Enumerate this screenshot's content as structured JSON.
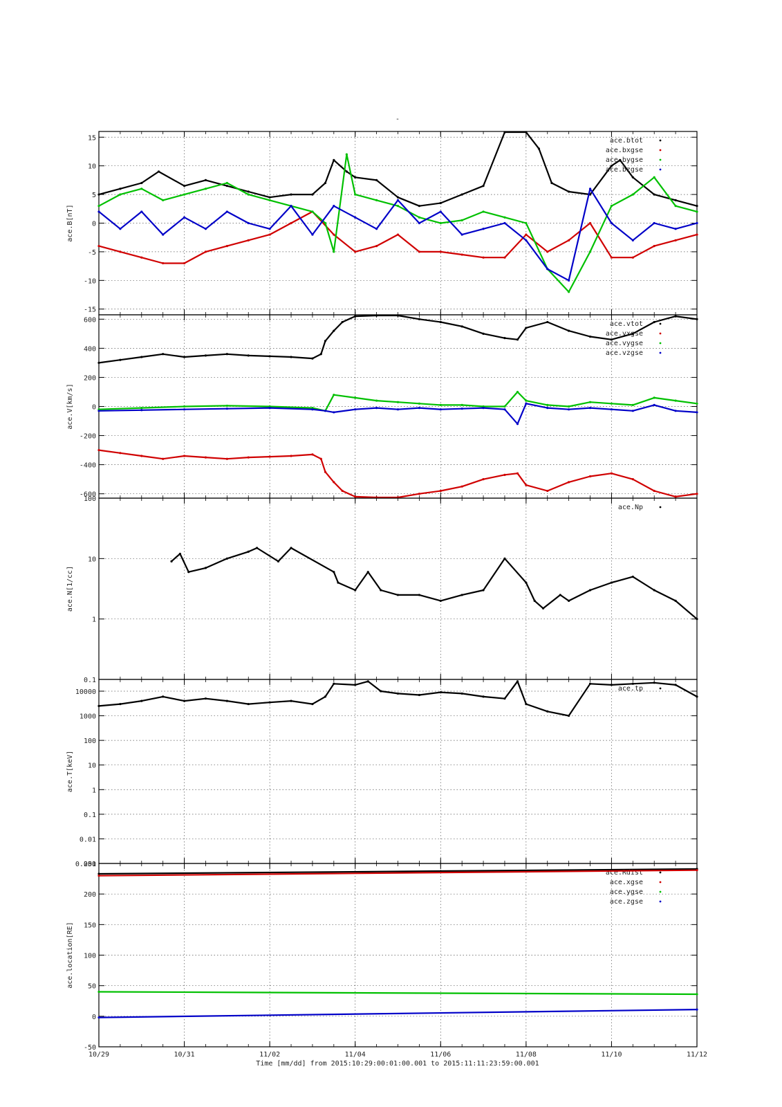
{
  "figure": {
    "title": "-",
    "x_axis_label": "Time [mm/dd]  from 2015:10:29:00:01:00.001  to  2015:11:11:23:59:00.001",
    "x_ticks": [
      "10/29",
      "10/31",
      "11/02",
      "11/04",
      "11/06",
      "11/08",
      "11/10",
      "11/12"
    ],
    "x_range_days": [
      0,
      14
    ]
  },
  "colors": {
    "black": "#000000",
    "red": "#d00000",
    "green": "#00c000",
    "blue": "#0000c8",
    "grid": "#555555"
  },
  "chart_data": [
    {
      "type": "scatter",
      "ylabel": "ace.B[nT]",
      "ylim": [
        -16,
        16
      ],
      "yscale": "linear",
      "y_ticks": [
        "15",
        "10",
        "5",
        "0",
        "-5",
        "-10",
        "-15"
      ],
      "legend_position": "top-right",
      "series": [
        {
          "name": "ace.btot",
          "color": "black",
          "x": [
            0,
            0.5,
            1,
            1.4,
            2,
            2.5,
            3,
            3.5,
            4,
            4.5,
            5,
            5.3,
            5.5,
            5.8,
            6,
            6.5,
            7,
            7.5,
            8,
            8.5,
            9,
            9.5,
            10,
            10.3,
            10.6,
            11,
            11.5,
            12,
            12.2,
            12.5,
            13,
            13.5,
            14
          ],
          "y": [
            5,
            6,
            7,
            9,
            6.5,
            7.5,
            6.5,
            5.5,
            4.5,
            5,
            5,
            7,
            11,
            9,
            8,
            7.5,
            4.5,
            3,
            3.5,
            5,
            6.5,
            17,
            16,
            13,
            7,
            5.5,
            5,
            10,
            11,
            8,
            5,
            4,
            3
          ]
        },
        {
          "name": "ace.bxgse",
          "color": "red",
          "x": [
            0,
            0.5,
            1,
            1.5,
            2,
            2.5,
            3,
            3.5,
            4,
            4.5,
            5,
            5.5,
            6,
            6.5,
            7,
            7.5,
            8,
            8.5,
            9,
            9.5,
            10,
            10.5,
            11,
            11.5,
            12,
            12.5,
            13,
            13.5,
            14
          ],
          "y": [
            -4,
            -5,
            -6,
            -7,
            -7,
            -5,
            -4,
            -3,
            -2,
            0,
            2,
            -2,
            -5,
            -4,
            -2,
            -5,
            -5,
            -5.5,
            -6,
            -6,
            -2,
            -5,
            -3,
            0,
            -6,
            -6,
            -4,
            -3,
            -2
          ]
        },
        {
          "name": "ace.bygse",
          "color": "green",
          "x": [
            0,
            0.5,
            1,
            1.5,
            2,
            2.5,
            3,
            3.5,
            4,
            4.5,
            5,
            5.3,
            5.5,
            5.8,
            6,
            6.5,
            7,
            7.5,
            8,
            8.5,
            9,
            9.5,
            10,
            10.5,
            11,
            11.5,
            12,
            12.5,
            13,
            13.5,
            14
          ],
          "y": [
            3,
            5,
            6,
            4,
            5,
            6,
            7,
            5,
            4,
            3,
            2,
            0,
            -5,
            12,
            5,
            4,
            3,
            1,
            0,
            0.5,
            2,
            1,
            0,
            -8,
            -12,
            -5,
            3,
            5,
            8,
            3,
            2
          ]
        },
        {
          "name": "ace.bzgse",
          "color": "blue",
          "x": [
            0,
            0.5,
            1,
            1.5,
            2,
            2.5,
            3,
            3.5,
            4,
            4.5,
            5,
            5.5,
            6,
            6.5,
            7,
            7.5,
            8,
            8.5,
            9,
            9.5,
            10,
            10.5,
            11,
            11.5,
            12,
            12.5,
            13,
            13.5,
            14
          ],
          "y": [
            2,
            -1,
            2,
            -2,
            1,
            -1,
            2,
            0,
            -1,
            3,
            -2,
            3,
            1,
            -1,
            4,
            0,
            2,
            -2,
            -1,
            0,
            -3,
            -8,
            -10,
            6,
            0,
            -3,
            0,
            -1,
            0
          ]
        }
      ]
    },
    {
      "type": "scatter",
      "ylabel": "ace.V[km/s]",
      "ylim": [
        -630,
        630
      ],
      "yscale": "linear",
      "y_ticks": [
        "600",
        "400",
        "200",
        "0",
        "-200",
        "-400",
        "-600"
      ],
      "legend_position": "top-right",
      "series": [
        {
          "name": "ace.vtot",
          "color": "black",
          "x": [
            0,
            0.5,
            1,
            1.5,
            2,
            2.5,
            3,
            3.5,
            4,
            4.5,
            5,
            5.2,
            5.3,
            5.5,
            5.7,
            6,
            6.5,
            7,
            7.5,
            8,
            8.5,
            9,
            9.5,
            9.8,
            10,
            10.5,
            11,
            11.5,
            12,
            12.5,
            13,
            13.5,
            14
          ],
          "y": [
            300,
            320,
            340,
            360,
            340,
            350,
            360,
            350,
            345,
            340,
            330,
            360,
            450,
            520,
            580,
            620,
            640,
            630,
            600,
            580,
            550,
            500,
            470,
            460,
            540,
            580,
            520,
            480,
            460,
            500,
            580,
            620,
            600
          ]
        },
        {
          "name": "ace.vxgse",
          "color": "red",
          "x": [
            0,
            0.5,
            1,
            1.5,
            2,
            2.5,
            3,
            3.5,
            4,
            4.5,
            5,
            5.2,
            5.3,
            5.5,
            5.7,
            6,
            6.5,
            7,
            7.5,
            8,
            8.5,
            9,
            9.5,
            9.8,
            10,
            10.5,
            11,
            11.5,
            12,
            12.5,
            13,
            13.5,
            14
          ],
          "y": [
            -300,
            -320,
            -340,
            -360,
            -340,
            -350,
            -360,
            -350,
            -345,
            -340,
            -330,
            -360,
            -450,
            -520,
            -580,
            -620,
            -640,
            -630,
            -600,
            -580,
            -550,
            -500,
            -470,
            -460,
            -540,
            -580,
            -520,
            -480,
            -460,
            -500,
            -580,
            -620,
            -600
          ]
        },
        {
          "name": "ace.vygse",
          "color": "green",
          "x": [
            0,
            1,
            2,
            3,
            4,
            5,
            5.3,
            5.5,
            6,
            6.5,
            7,
            7.5,
            8,
            8.5,
            9,
            9.5,
            9.8,
            10,
            10.5,
            11,
            11.5,
            12,
            12.5,
            13,
            13.5,
            14
          ],
          "y": [
            -20,
            -10,
            0,
            5,
            0,
            -10,
            -30,
            80,
            60,
            40,
            30,
            20,
            10,
            10,
            0,
            0,
            100,
            40,
            10,
            0,
            30,
            20,
            10,
            60,
            40,
            20
          ]
        },
        {
          "name": "ace.vzgse",
          "color": "blue",
          "x": [
            0,
            1,
            2,
            3,
            4,
            5,
            5.3,
            5.5,
            6,
            6.5,
            7,
            7.5,
            8,
            8.5,
            9,
            9.5,
            9.8,
            10,
            10.5,
            11,
            11.5,
            12,
            12.5,
            13,
            13.5,
            14
          ],
          "y": [
            -30,
            -25,
            -20,
            -15,
            -10,
            -20,
            -30,
            -40,
            -20,
            -10,
            -20,
            -10,
            -20,
            -15,
            -10,
            -20,
            -120,
            20,
            -10,
            -20,
            -10,
            -20,
            -30,
            10,
            -30,
            -40
          ]
        }
      ]
    },
    {
      "type": "scatter",
      "ylabel": "ace.N[1/cc]",
      "ylim": [
        0.1,
        100
      ],
      "yscale": "log",
      "y_ticks": [
        "100",
        "10",
        "1",
        "0.1"
      ],
      "legend_position": "top-right",
      "series": [
        {
          "name": "ace.Np",
          "color": "black",
          "x": [
            1.7,
            1.9,
            2.1,
            2.5,
            3,
            3.5,
            3.7,
            4.2,
            4.5,
            5.5,
            5.6,
            6,
            6.3,
            6.6,
            7,
            7.5,
            8,
            8.5,
            9,
            9.5,
            10,
            10.2,
            10.4,
            10.8,
            11,
            11.5,
            12,
            12.5,
            13,
            13.5,
            14
          ],
          "y": [
            9,
            12,
            6,
            7,
            10,
            13,
            15,
            9,
            15,
            6,
            4,
            3,
            6,
            3,
            2.5,
            2.5,
            2,
            2.5,
            3,
            10,
            4,
            2,
            1.5,
            2.5,
            2,
            3,
            4,
            5,
            3,
            2,
            1
          ]
        }
      ]
    },
    {
      "type": "scatter",
      "ylabel": "ace.T[keV]",
      "ylim": [
        0.001,
        30000
      ],
      "yscale": "log",
      "y_ticks": [
        "10000",
        "1000",
        "100",
        "10",
        "1",
        "0.1",
        "0.01",
        "0.001"
      ],
      "legend_position": "top-right",
      "series": [
        {
          "name": "ace.tp",
          "color": "black",
          "x": [
            0,
            0.5,
            1,
            1.5,
            2,
            2.5,
            3,
            3.5,
            4,
            4.5,
            5,
            5.3,
            5.5,
            6,
            6.3,
            6.6,
            7,
            7.5,
            8,
            8.5,
            9,
            9.5,
            9.8,
            10,
            10.5,
            11,
            11.5,
            12,
            12.5,
            13,
            13.5,
            14
          ],
          "y": [
            2500,
            3000,
            4000,
            6000,
            4000,
            5000,
            4000,
            3000,
            3500,
            4000,
            3000,
            6000,
            20000,
            18000,
            25000,
            10000,
            8000,
            7000,
            9000,
            8000,
            6000,
            5000,
            25000,
            3000,
            1500,
            1000,
            20000,
            18000,
            20000,
            22000,
            18000,
            6000
          ]
        }
      ]
    },
    {
      "type": "scatter",
      "ylabel": "ace.location[RE]",
      "ylim": [
        -50,
        250
      ],
      "yscale": "linear",
      "y_ticks": [
        "250",
        "200",
        "150",
        "100",
        "50",
        "0",
        "-50"
      ],
      "legend_position": "top-right",
      "series": [
        {
          "name": "ace.Rdist",
          "color": "black",
          "x": [
            0,
            14
          ],
          "y": [
            233,
            241
          ]
        },
        {
          "name": "ace.xgse",
          "color": "red",
          "x": [
            0,
            14
          ],
          "y": [
            230,
            239
          ]
        },
        {
          "name": "ace.ygse",
          "color": "green",
          "x": [
            0,
            14
          ],
          "y": [
            40,
            36
          ]
        },
        {
          "name": "ace.zgse",
          "color": "blue",
          "x": [
            0,
            14
          ],
          "y": [
            -2,
            11
          ]
        }
      ]
    }
  ]
}
